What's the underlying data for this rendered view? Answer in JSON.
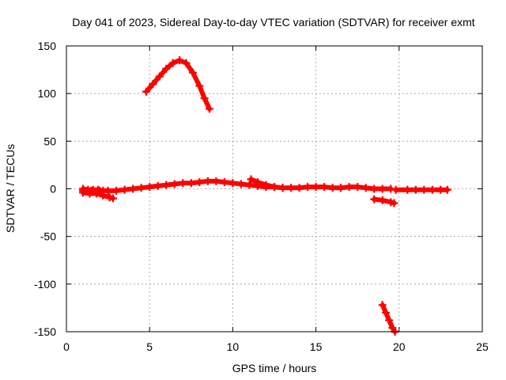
{
  "chart_data": {
    "type": "scatter",
    "title": "Day 041 of 2023, Sidereal Day-to-day VTEC variation (SDTVAR) for receiver exmt",
    "xlabel": "GPS time / hours",
    "ylabel": "SDTVAR / TECUs",
    "xlim": [
      0,
      25
    ],
    "ylim": [
      -150,
      150
    ],
    "xticks": [
      0,
      5,
      10,
      15,
      20,
      25
    ],
    "yticks": [
      -150,
      -100,
      -50,
      0,
      50,
      100,
      150
    ],
    "grid": true,
    "marker_color": "#ff0000",
    "series": [
      {
        "name": "arc-high",
        "points": [
          [
            4.8,
            102
          ],
          [
            5.2,
            110
          ],
          [
            5.6,
            118
          ],
          [
            6.0,
            126
          ],
          [
            6.4,
            132
          ],
          [
            6.8,
            135
          ],
          [
            7.2,
            132
          ],
          [
            7.6,
            122
          ],
          [
            8.0,
            108
          ],
          [
            8.3,
            95
          ],
          [
            8.6,
            84
          ]
        ]
      },
      {
        "name": "main-band",
        "points": [
          [
            1.0,
            -2
          ],
          [
            1.5,
            -2
          ],
          [
            2.0,
            -2
          ],
          [
            2.5,
            -2
          ],
          [
            3.0,
            -2
          ],
          [
            3.5,
            -1
          ],
          [
            4.0,
            0
          ],
          [
            4.5,
            1
          ],
          [
            5.0,
            2
          ],
          [
            5.5,
            3
          ],
          [
            6.0,
            4
          ],
          [
            6.5,
            5
          ],
          [
            7.0,
            6
          ],
          [
            7.5,
            6
          ],
          [
            8.0,
            7
          ],
          [
            8.5,
            8
          ],
          [
            9.0,
            8
          ],
          [
            9.5,
            7
          ],
          [
            10.0,
            6
          ],
          [
            10.5,
            5
          ],
          [
            11.0,
            4
          ],
          [
            11.5,
            3
          ],
          [
            12.0,
            2
          ],
          [
            12.5,
            2
          ],
          [
            13.0,
            1
          ],
          [
            13.5,
            1
          ],
          [
            14.0,
            1
          ],
          [
            14.5,
            2
          ],
          [
            15.0,
            2
          ],
          [
            15.5,
            2
          ],
          [
            16.0,
            1
          ],
          [
            16.5,
            1
          ],
          [
            17.0,
            2
          ],
          [
            17.5,
            2
          ],
          [
            18.0,
            1
          ],
          [
            18.5,
            0
          ],
          [
            19.0,
            0
          ],
          [
            19.5,
            0
          ]
        ]
      },
      {
        "name": "early-dip",
        "points": [
          [
            1.0,
            -4
          ],
          [
            1.4,
            -5
          ],
          [
            1.8,
            -5
          ],
          [
            2.2,
            -7
          ],
          [
            2.6,
            -9
          ],
          [
            2.8,
            -10
          ]
        ]
      },
      {
        "name": "early-fragment",
        "points": [
          [
            1.0,
            0
          ],
          [
            1.3,
            -1
          ],
          [
            1.6,
            -1
          ],
          [
            1.9,
            -1
          ],
          [
            2.2,
            -2
          ]
        ]
      },
      {
        "name": "mid-bump",
        "points": [
          [
            11.1,
            10
          ],
          [
            11.5,
            7
          ],
          [
            12.0,
            4
          ],
          [
            12.5,
            2
          ],
          [
            13.0,
            1
          ]
        ]
      },
      {
        "name": "late-tail",
        "points": [
          [
            19.8,
            -1
          ],
          [
            20.5,
            -1
          ],
          [
            21.0,
            -1
          ],
          [
            21.5,
            -1
          ],
          [
            22.0,
            -1
          ],
          [
            22.5,
            -1
          ],
          [
            22.9,
            -1
          ]
        ]
      },
      {
        "name": "late-drop",
        "points": [
          [
            18.5,
            -11
          ],
          [
            19.0,
            -12
          ],
          [
            19.5,
            -14
          ],
          [
            19.7,
            -15
          ]
        ]
      },
      {
        "name": "low-arc",
        "points": [
          [
            19.0,
            -122
          ],
          [
            19.2,
            -130
          ],
          [
            19.4,
            -138
          ],
          [
            19.6,
            -146
          ],
          [
            19.75,
            -150
          ]
        ]
      }
    ]
  }
}
